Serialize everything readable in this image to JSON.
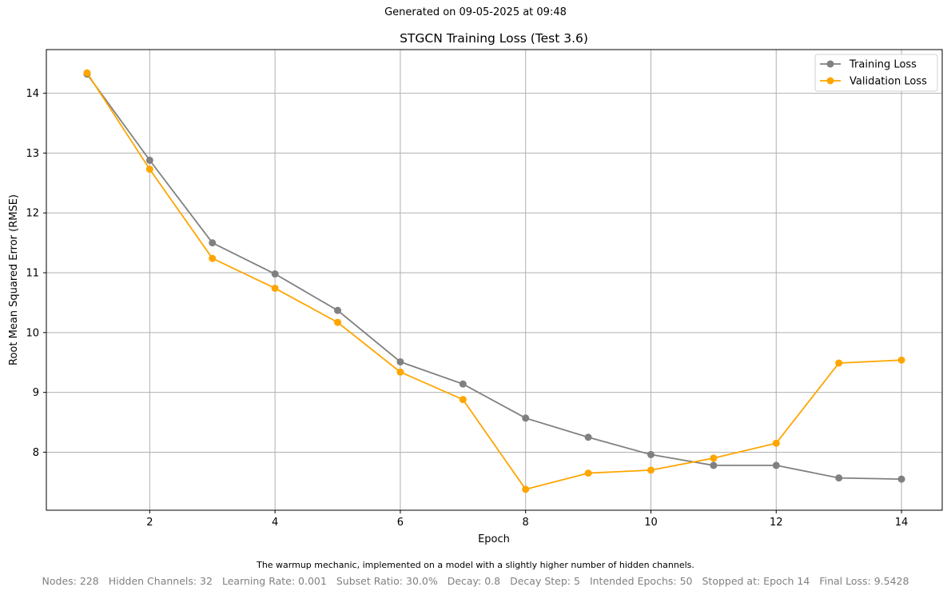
{
  "header": {
    "generated": "Generated on 09-05-2025 at 09:48"
  },
  "chart_data": {
    "type": "line",
    "title": "STGCN Training Loss (Test 3.6)",
    "xlabel": "Epoch",
    "ylabel": "Root Mean Squared Error (RMSE)",
    "x": [
      1,
      2,
      3,
      4,
      5,
      6,
      7,
      8,
      9,
      10,
      11,
      12,
      13,
      14
    ],
    "xticks": [
      2,
      4,
      6,
      8,
      10,
      12,
      14
    ],
    "yticks": [
      8,
      9,
      10,
      11,
      12,
      13,
      14
    ],
    "xlim": [
      0.35,
      14.65
    ],
    "ylim": [
      7.03,
      14.73
    ],
    "grid": true,
    "legend_position": "top-right",
    "series": [
      {
        "name": "Training Loss",
        "color": "#808080",
        "values": [
          14.32,
          12.88,
          11.5,
          10.98,
          10.37,
          9.51,
          9.14,
          8.57,
          8.25,
          7.96,
          7.78,
          7.78,
          7.57,
          7.55
        ]
      },
      {
        "name": "Validation Loss",
        "color": "#FFA500",
        "values": [
          14.34,
          12.73,
          11.24,
          10.74,
          10.17,
          9.34,
          8.88,
          7.38,
          7.65,
          7.7,
          7.9,
          8.15,
          9.49,
          9.54
        ]
      }
    ]
  },
  "footer": {
    "description": "The warmup mechanic, implemented on a model with a slightly higher number of hidden channels.",
    "nodes": "Nodes: 228",
    "hidden_channels": "Hidden Channels: 32",
    "learning_rate": "Learning Rate: 0.001",
    "subset_ratio": "Subset Ratio: 30.0%",
    "decay": "Decay: 0.8",
    "decay_step": "Decay Step: 5",
    "intended_epochs": "Intended Epochs: 50",
    "stopped_at": "Stopped at: Epoch 14",
    "final_loss": "Final Loss: 9.5428"
  }
}
